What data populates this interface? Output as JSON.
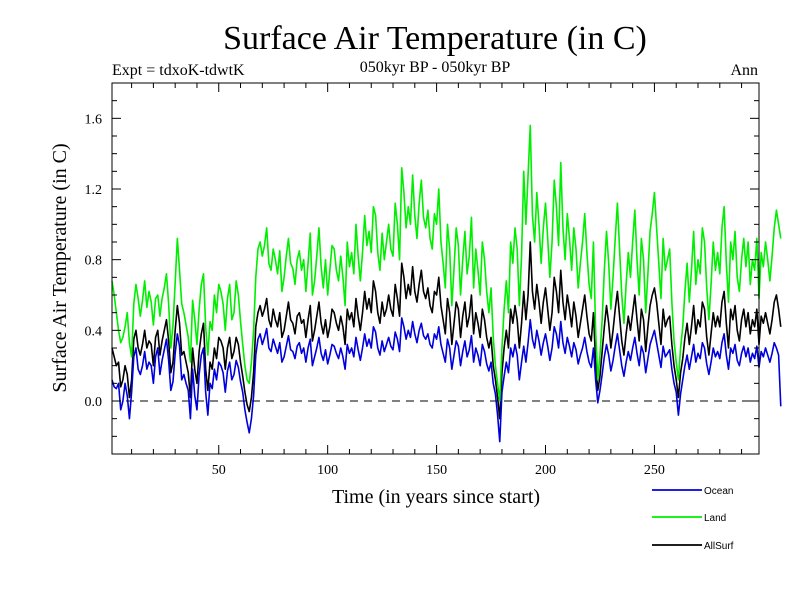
{
  "chart_data": {
    "type": "line",
    "title": "Surface Air Temperature (in C)",
    "subtitle": "050kyr BP - 050kyr BP",
    "left_annotation": "Expt = tdxoK-tdwtK",
    "right_annotation": "Ann",
    "xlabel": "Time (in years since start)",
    "ylabel": "Surface Air Temperature (in C)",
    "xlim": [
      1,
      298
    ],
    "ylim": [
      -0.3,
      1.8
    ],
    "x_ticks": [
      50,
      100,
      150,
      200,
      250
    ],
    "y_ticks": [
      0.0,
      0.4,
      0.8,
      1.2,
      1.6
    ],
    "y_tick_labels": [
      "0.0",
      "0.4",
      "0.8",
      "1.2",
      "1.6"
    ],
    "zero_line": true,
    "x_start": 1,
    "x_step": 1,
    "series": [
      {
        "name": "Ocean",
        "color": "#0000dd",
        "values": [
          0.12,
          0.08,
          0.07,
          0.1,
          -0.05,
          0.0,
          0.1,
          0.03,
          -0.1,
          0.05,
          0.25,
          0.3,
          0.18,
          0.15,
          0.2,
          0.28,
          0.18,
          0.22,
          0.2,
          0.1,
          0.25,
          0.3,
          0.15,
          0.23,
          0.29,
          0.35,
          0.23,
          0.06,
          0.11,
          0.27,
          0.38,
          0.31,
          0.12,
          0.15,
          0.1,
          0.06,
          -0.1,
          0.18,
          0.03,
          -0.05,
          0.15,
          0.26,
          0.3,
          0.05,
          -0.08,
          0.1,
          0.07,
          0.18,
          0.12,
          0.22,
          0.2,
          0.16,
          0.05,
          0.17,
          0.22,
          0.12,
          0.15,
          0.23,
          0.19,
          0.11,
          0.05,
          -0.05,
          -0.12,
          -0.18,
          -0.1,
          0.03,
          0.26,
          0.35,
          0.38,
          0.32,
          0.36,
          0.41,
          0.3,
          0.28,
          0.35,
          0.31,
          0.27,
          0.33,
          0.22,
          0.25,
          0.31,
          0.37,
          0.29,
          0.28,
          0.24,
          0.31,
          0.33,
          0.27,
          0.3,
          0.22,
          0.3,
          0.35,
          0.2,
          0.25,
          0.3,
          0.36,
          0.27,
          0.23,
          0.29,
          0.21,
          0.26,
          0.32,
          0.31,
          0.27,
          0.24,
          0.3,
          0.25,
          0.18,
          0.32,
          0.27,
          0.3,
          0.25,
          0.36,
          0.29,
          0.23,
          0.3,
          0.38,
          0.31,
          0.35,
          0.3,
          0.42,
          0.39,
          0.3,
          0.26,
          0.34,
          0.28,
          0.32,
          0.36,
          0.31,
          0.29,
          0.39,
          0.35,
          0.28,
          0.47,
          0.42,
          0.35,
          0.4,
          0.36,
          0.45,
          0.38,
          0.33,
          0.4,
          0.44,
          0.37,
          0.35,
          0.38,
          0.32,
          0.3,
          0.38,
          0.35,
          0.42,
          0.32,
          0.27,
          0.22,
          0.35,
          0.3,
          0.18,
          0.26,
          0.34,
          0.31,
          0.2,
          0.28,
          0.34,
          0.25,
          0.29,
          0.37,
          0.22,
          0.3,
          0.26,
          0.2,
          0.32,
          0.28,
          0.21,
          0.17,
          0.22,
          0.1,
          0.04,
          -0.08,
          -0.23,
          0.05,
          0.14,
          0.22,
          0.16,
          0.3,
          0.25,
          0.32,
          0.26,
          0.12,
          0.22,
          0.31,
          0.22,
          0.33,
          0.46,
          0.35,
          0.3,
          0.4,
          0.34,
          0.26,
          0.33,
          0.38,
          0.31,
          0.23,
          0.3,
          0.42,
          0.38,
          0.3,
          0.45,
          0.33,
          0.27,
          0.36,
          0.31,
          0.25,
          0.33,
          0.29,
          0.21,
          0.26,
          0.3,
          0.36,
          0.28,
          0.22,
          0.19,
          0.3,
          0.12,
          -0.01,
          0.06,
          0.15,
          0.25,
          0.32,
          0.26,
          0.17,
          0.23,
          0.31,
          0.38,
          0.29,
          0.2,
          0.14,
          0.22,
          0.28,
          0.23,
          0.3,
          0.36,
          0.27,
          0.2,
          0.31,
          0.27,
          0.16,
          0.24,
          0.32,
          0.36,
          0.4,
          0.33,
          0.26,
          0.19,
          0.31,
          0.25,
          0.27,
          0.29,
          0.18,
          0.1,
          0.05,
          -0.08,
          0.04,
          0.12,
          0.2,
          0.26,
          0.18,
          0.25,
          0.32,
          0.22,
          0.27,
          0.24,
          0.33,
          0.3,
          0.21,
          0.15,
          0.22,
          0.3,
          0.25,
          0.28,
          0.24,
          0.33,
          0.38,
          0.26,
          0.18,
          0.3,
          0.27,
          0.32,
          0.23,
          0.2,
          0.27,
          0.31,
          0.25,
          0.3,
          0.22,
          0.27,
          0.24,
          0.31,
          0.19,
          0.28,
          0.25,
          0.3,
          0.26,
          0.22,
          0.27,
          0.33,
          0.3,
          0.26,
          -0.03
        ]
      },
      {
        "name": "Land",
        "color": "#00ee00",
        "values": [
          0.68,
          0.6,
          0.5,
          0.4,
          0.33,
          0.36,
          0.42,
          0.5,
          0.33,
          0.25,
          0.55,
          0.66,
          0.58,
          0.48,
          0.57,
          0.68,
          0.53,
          0.62,
          0.56,
          0.43,
          0.58,
          0.6,
          0.48,
          0.58,
          0.64,
          0.72,
          0.55,
          0.3,
          0.43,
          0.67,
          0.92,
          0.74,
          0.55,
          0.5,
          0.43,
          0.36,
          0.22,
          0.57,
          0.46,
          0.32,
          0.52,
          0.66,
          0.72,
          0.42,
          0.26,
          0.45,
          0.4,
          0.6,
          0.5,
          0.66,
          0.62,
          0.55,
          0.4,
          0.58,
          0.66,
          0.46,
          0.5,
          0.68,
          0.6,
          0.45,
          0.32,
          0.2,
          0.12,
          0.1,
          0.22,
          0.4,
          0.7,
          0.86,
          0.9,
          0.82,
          0.88,
          0.98,
          0.78,
          0.74,
          0.86,
          0.8,
          0.72,
          0.85,
          0.62,
          0.7,
          0.82,
          0.92,
          0.78,
          0.75,
          0.66,
          0.8,
          0.85,
          0.74,
          0.8,
          0.62,
          0.78,
          0.95,
          0.6,
          0.68,
          0.82,
          0.98,
          0.76,
          0.64,
          0.8,
          0.6,
          0.74,
          0.88,
          0.86,
          0.74,
          0.68,
          0.82,
          0.7,
          0.54,
          0.9,
          0.76,
          0.84,
          0.72,
          1.0,
          0.82,
          0.68,
          0.84,
          1.05,
          0.88,
          0.96,
          0.84,
          1.1,
          1.05,
          0.84,
          0.74,
          0.95,
          0.8,
          0.9,
          1.0,
          0.86,
          0.82,
          1.12,
          1.0,
          0.8,
          1.32,
          1.18,
          0.98,
          1.1,
          1.0,
          1.28,
          1.05,
          0.92,
          1.12,
          1.25,
          1.04,
          0.98,
          1.08,
          0.92,
          0.86,
          1.06,
          1.0,
          1.2,
          0.9,
          0.78,
          0.64,
          1.0,
          0.86,
          0.54,
          0.75,
          0.98,
          0.88,
          0.6,
          0.8,
          0.96,
          0.72,
          0.82,
          1.04,
          0.64,
          0.86,
          0.74,
          0.6,
          0.9,
          0.8,
          0.62,
          0.5,
          0.64,
          0.36,
          0.2,
          0.1,
          0.0,
          0.3,
          0.52,
          0.68,
          0.5,
          0.9,
          0.78,
          0.98,
          0.86,
          0.54,
          0.82,
          1.3,
          1.0,
          1.28,
          1.56,
          1.05,
          0.9,
          1.18,
          1.0,
          0.78,
          0.98,
          1.12,
          0.92,
          0.7,
          0.9,
          1.25,
          1.1,
          0.88,
          1.35,
          0.98,
          0.8,
          1.06,
          0.92,
          0.74,
          0.98,
          0.86,
          0.64,
          0.78,
          0.9,
          1.06,
          0.84,
          0.66,
          0.58,
          0.9,
          0.4,
          0.12,
          0.26,
          0.46,
          0.74,
          0.96,
          0.78,
          0.52,
          0.7,
          0.92,
          1.12,
          0.86,
          0.6,
          0.44,
          0.66,
          0.84,
          0.7,
          0.9,
          1.08,
          0.8,
          0.6,
          0.92,
          0.8,
          0.5,
          0.72,
          0.96,
          1.06,
          1.18,
          0.98,
          0.78,
          0.58,
          0.92,
          0.74,
          0.8,
          0.86,
          0.56,
          0.34,
          0.22,
          0.12,
          0.3,
          0.42,
          0.62,
          0.78,
          0.56,
          0.74,
          0.96,
          0.66,
          0.8,
          0.72,
          0.98,
          0.9,
          0.64,
          0.46,
          0.66,
          0.9,
          0.74,
          0.84,
          0.72,
          0.98,
          1.1,
          0.78,
          0.56,
          0.9,
          0.8,
          0.96,
          0.7,
          0.62,
          0.8,
          0.92,
          0.76,
          0.9,
          0.66,
          0.8,
          0.74,
          0.92,
          0.58,
          0.84,
          0.76,
          0.9,
          0.8,
          0.68,
          0.82,
          0.98,
          1.08,
          1.0,
          0.92
        ]
      },
      {
        "name": "AllSurf",
        "color": "#000000",
        "values": [
          0.3,
          0.25,
          0.2,
          0.22,
          0.08,
          0.12,
          0.2,
          0.15,
          0.02,
          0.12,
          0.35,
          0.4,
          0.3,
          0.26,
          0.32,
          0.4,
          0.3,
          0.34,
          0.32,
          0.2,
          0.36,
          0.4,
          0.26,
          0.34,
          0.4,
          0.46,
          0.34,
          0.16,
          0.22,
          0.4,
          0.54,
          0.44,
          0.26,
          0.28,
          0.22,
          0.16,
          0.02,
          0.3,
          0.18,
          0.1,
          0.28,
          0.38,
          0.44,
          0.18,
          0.06,
          0.22,
          0.18,
          0.3,
          0.24,
          0.36,
          0.34,
          0.3,
          0.18,
          0.3,
          0.36,
          0.24,
          0.28,
          0.36,
          0.32,
          0.22,
          0.14,
          0.05,
          -0.02,
          -0.06,
          0.02,
          0.16,
          0.42,
          0.5,
          0.54,
          0.48,
          0.52,
          0.58,
          0.46,
          0.42,
          0.52,
          0.46,
          0.42,
          0.5,
          0.36,
          0.4,
          0.48,
          0.56,
          0.46,
          0.44,
          0.38,
          0.48,
          0.5,
          0.44,
          0.46,
          0.36,
          0.46,
          0.54,
          0.34,
          0.4,
          0.48,
          0.56,
          0.44,
          0.38,
          0.46,
          0.36,
          0.42,
          0.52,
          0.5,
          0.44,
          0.4,
          0.48,
          0.42,
          0.32,
          0.52,
          0.46,
          0.5,
          0.42,
          0.58,
          0.48,
          0.4,
          0.5,
          0.62,
          0.52,
          0.58,
          0.5,
          0.68,
          0.62,
          0.5,
          0.44,
          0.56,
          0.48,
          0.52,
          0.6,
          0.52,
          0.48,
          0.66,
          0.58,
          0.48,
          0.78,
          0.7,
          0.58,
          0.66,
          0.6,
          0.76,
          0.62,
          0.56,
          0.66,
          0.74,
          0.62,
          0.58,
          0.64,
          0.54,
          0.5,
          0.62,
          0.6,
          0.7,
          0.54,
          0.46,
          0.38,
          0.58,
          0.5,
          0.32,
          0.44,
          0.56,
          0.52,
          0.36,
          0.48,
          0.56,
          0.42,
          0.48,
          0.6,
          0.38,
          0.5,
          0.44,
          0.36,
          0.52,
          0.46,
          0.36,
          0.3,
          0.36,
          0.2,
          0.12,
          0.02,
          -0.1,
          0.16,
          0.3,
          0.4,
          0.3,
          0.52,
          0.44,
          0.54,
          0.46,
          0.3,
          0.44,
          0.62,
          0.46,
          0.6,
          0.9,
          0.62,
          0.52,
          0.66,
          0.56,
          0.44,
          0.56,
          0.64,
          0.52,
          0.4,
          0.5,
          0.7,
          0.62,
          0.5,
          0.74,
          0.56,
          0.46,
          0.6,
          0.52,
          0.42,
          0.56,
          0.48,
          0.36,
          0.44,
          0.52,
          0.6,
          0.48,
          0.38,
          0.34,
          0.5,
          0.22,
          0.06,
          0.14,
          0.28,
          0.42,
          0.54,
          0.44,
          0.3,
          0.4,
          0.52,
          0.62,
          0.48,
          0.34,
          0.26,
          0.38,
          0.48,
          0.4,
          0.5,
          0.6,
          0.46,
          0.34,
          0.52,
          0.46,
          0.28,
          0.42,
          0.54,
          0.6,
          0.64,
          0.56,
          0.44,
          0.32,
          0.52,
          0.42,
          0.46,
          0.48,
          0.32,
          0.2,
          0.12,
          0.02,
          0.16,
          0.24,
          0.36,
          0.44,
          0.32,
          0.42,
          0.54,
          0.38,
          0.46,
          0.42,
          0.56,
          0.52,
          0.36,
          0.26,
          0.38,
          0.5,
          0.42,
          0.48,
          0.42,
          0.56,
          0.62,
          0.44,
          0.3,
          0.52,
          0.46,
          0.54,
          0.4,
          0.34,
          0.46,
          0.52,
          0.42,
          0.5,
          0.38,
          0.46,
          0.42,
          0.52,
          0.32,
          0.48,
          0.44,
          0.5,
          0.44,
          0.38,
          0.46,
          0.56,
          0.6,
          0.52,
          0.42
        ]
      }
    ]
  }
}
